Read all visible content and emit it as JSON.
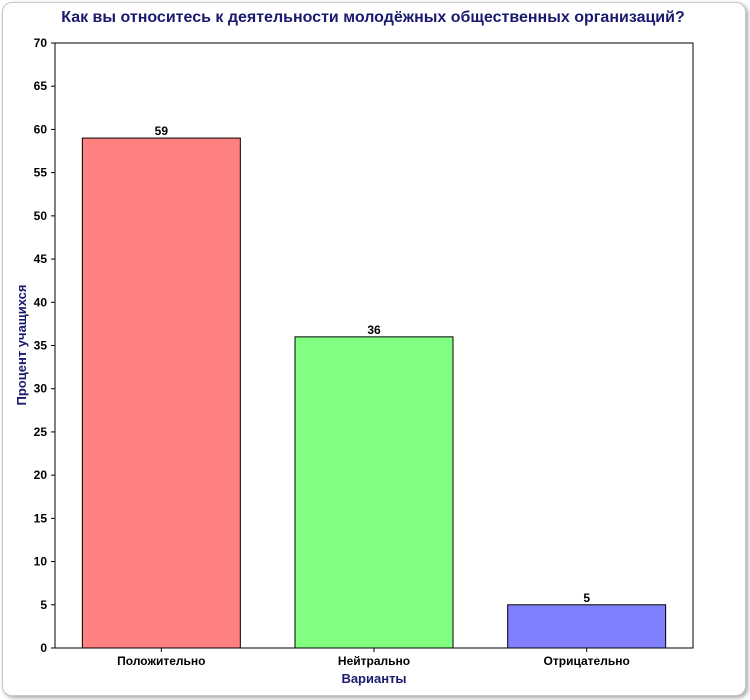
{
  "chart_data": {
    "type": "bar",
    "title": "Как вы относитесь к деятельности молодёжных общественных организаций?",
    "xlabel": "Варианты",
    "ylabel": "Процент учащихся",
    "categories": [
      "Положительно",
      "Нейтрально",
      "Отрицательно"
    ],
    "values": [
      59,
      36,
      5
    ],
    "data_labels": [
      "59",
      "36",
      "5"
    ],
    "colors": [
      "#ff8080",
      "#80ff80",
      "#8080ff"
    ],
    "ylim": [
      0,
      70
    ],
    "yticks": [
      0,
      5,
      10,
      15,
      20,
      25,
      30,
      35,
      40,
      45,
      50,
      55,
      60,
      65,
      70
    ],
    "grid": false,
    "legend": "none"
  }
}
